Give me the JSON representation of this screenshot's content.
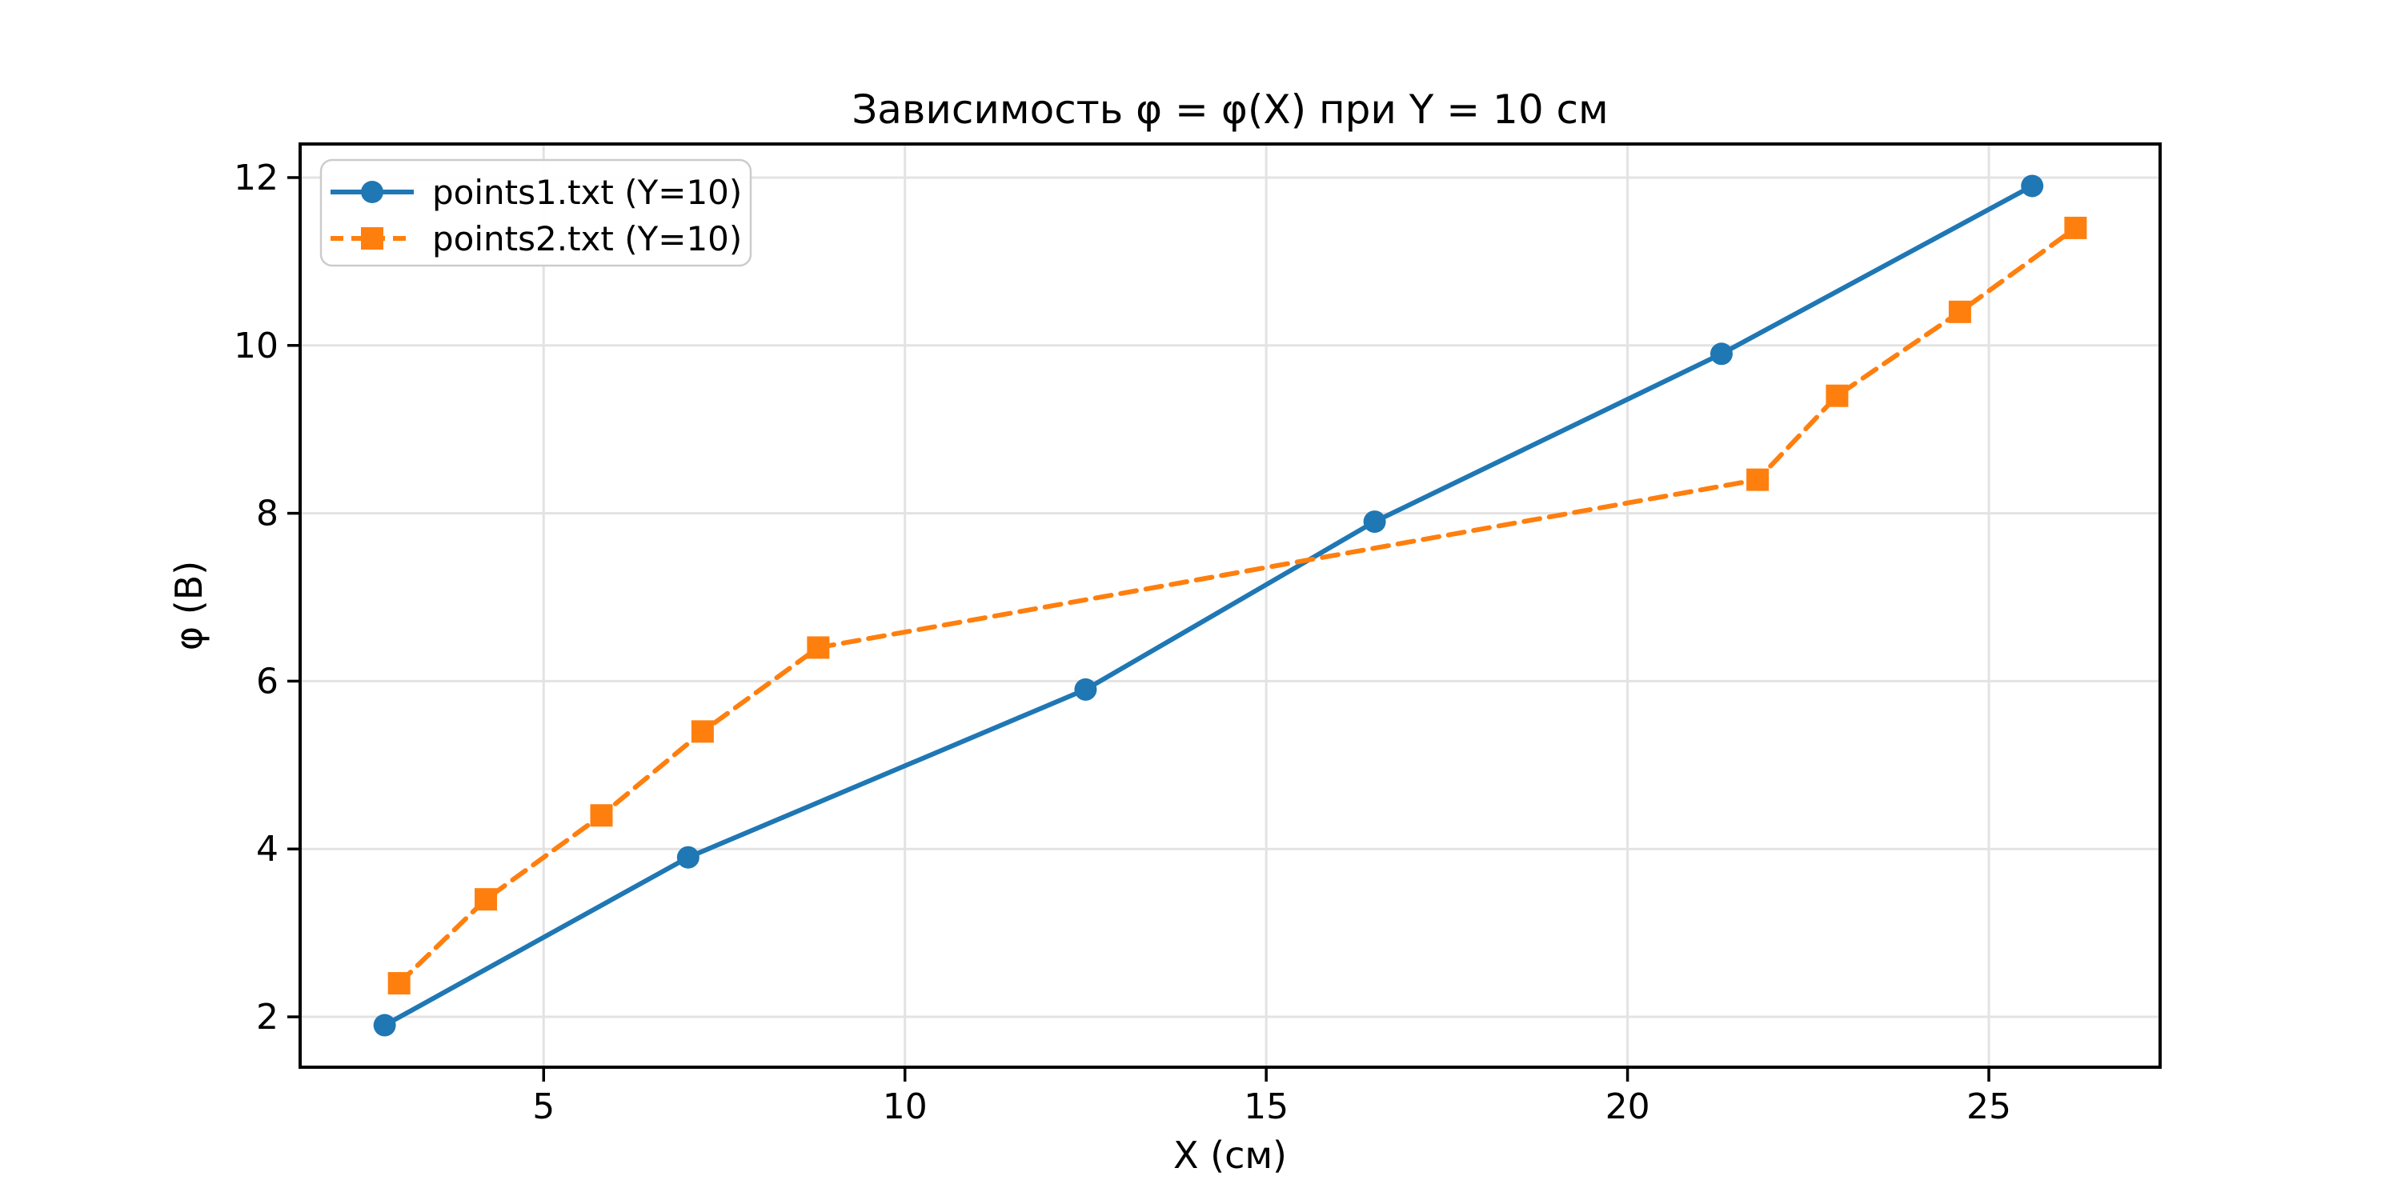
{
  "figure": {
    "background_color": "#ffffff",
    "grid_color": "#e3e3e3",
    "spine_color": "#000000",
    "text_color": "#000000",
    "legend_border_color": "#cccccc",
    "legend_background": "#ffffff"
  },
  "chart_data": {
    "type": "line",
    "title": "Зависимость φ = φ(X) при Y = 10 см",
    "xlabel": "X (см)",
    "ylabel": "φ (В)",
    "xlim": [
      1.63,
      27.37
    ],
    "ylim": [
      1.4,
      12.4
    ],
    "xticks": [
      5,
      10,
      15,
      20,
      25
    ],
    "yticks": [
      2,
      4,
      6,
      8,
      10,
      12
    ],
    "grid": true,
    "legend_position": "upper left",
    "series": [
      {
        "name": "points1.txt (Y=10)",
        "color": "#1f77b4",
        "linestyle": "solid",
        "marker": "circle",
        "x": [
          2.8,
          7.0,
          12.5,
          16.5,
          21.3,
          25.6
        ],
        "y": [
          1.9,
          3.9,
          5.9,
          7.9,
          9.9,
          11.9
        ]
      },
      {
        "name": "points2.txt (Y=10)",
        "color": "#ff7f0e",
        "linestyle": "dashed",
        "marker": "square",
        "x": [
          3.0,
          4.2,
          5.8,
          7.2,
          8.8,
          21.8,
          22.9,
          24.6,
          26.2
        ],
        "y": [
          2.4,
          3.4,
          4.4,
          5.4,
          6.4,
          8.4,
          9.4,
          10.4,
          11.4
        ]
      }
    ]
  }
}
